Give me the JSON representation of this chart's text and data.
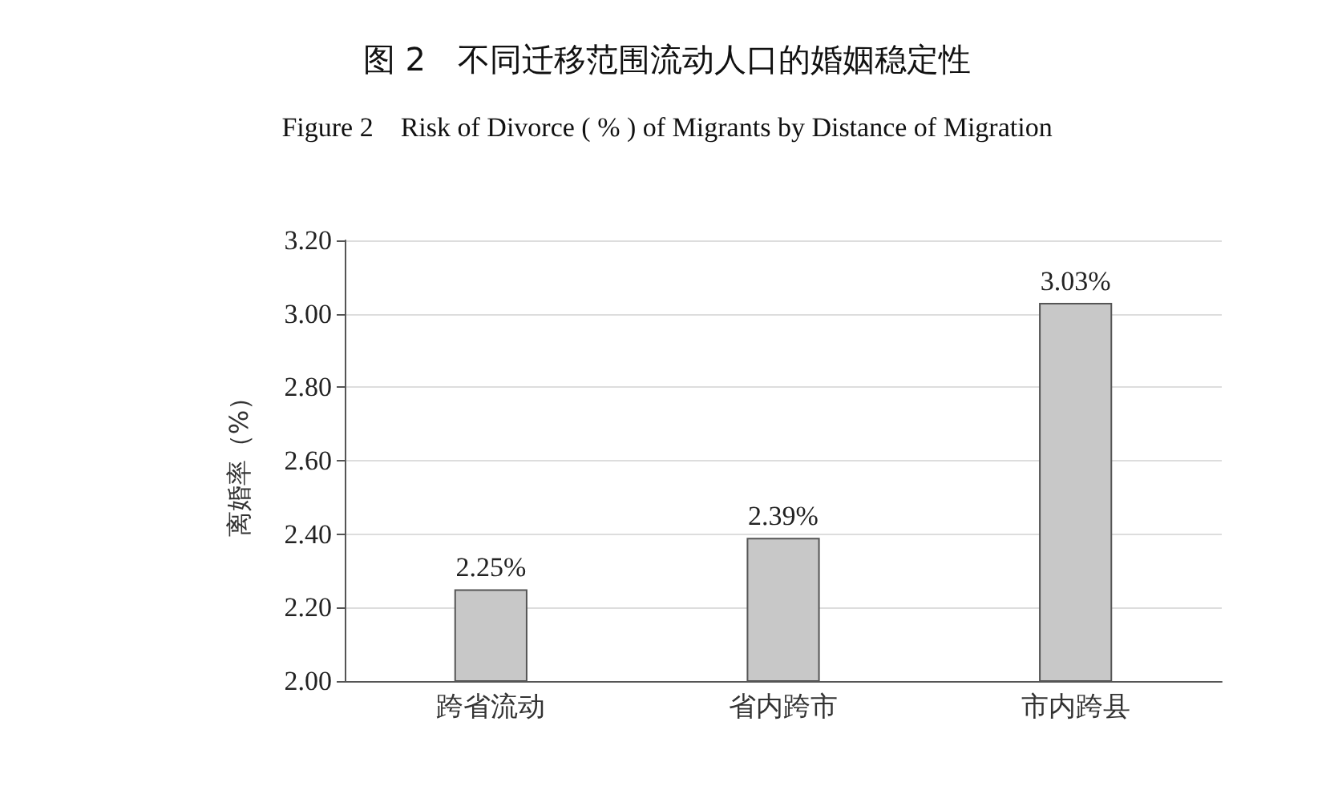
{
  "chart_data": {
    "type": "bar",
    "title": "图 2　不同迁移范围流动人口的婚姻稳定性",
    "subtitle": "Figure 2　Risk of Divorce ( % ) of Migrants by Distance of Migration",
    "ylabel": "离婚率（%）",
    "categories": [
      "跨省流动",
      "省内跨市",
      "市内跨县"
    ],
    "values": [
      2.25,
      2.39,
      3.03
    ],
    "value_labels": [
      "2.25%",
      "2.39%",
      "3.03%"
    ],
    "color": "#c8c8c8",
    "ylim": [
      2.0,
      3.2
    ],
    "yticks": [
      {
        "value": 2.0,
        "label": "2.00"
      },
      {
        "value": 2.2,
        "label": "2.20"
      },
      {
        "value": 2.4,
        "label": "2.40"
      },
      {
        "value": 2.6,
        "label": "2.60"
      },
      {
        "value": 2.8,
        "label": "2.80"
      },
      {
        "value": 3.0,
        "label": "3.00"
      },
      {
        "value": 3.2,
        "label": "3.20"
      }
    ],
    "grid": "y"
  }
}
